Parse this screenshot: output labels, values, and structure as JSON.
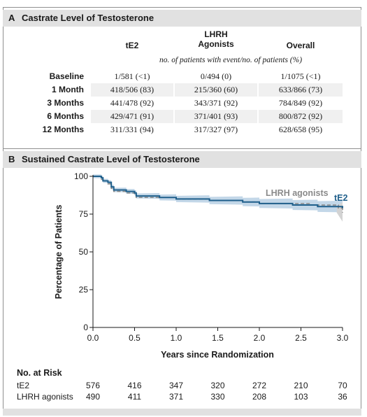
{
  "panel_a": {
    "letter": "A",
    "title": "Castrate Level of Testosterone",
    "columns": [
      "tE2",
      "LHRH Agonists",
      "Overall"
    ],
    "column_lines": [
      [
        "tE2"
      ],
      [
        "LHRH",
        "Agonists"
      ],
      [
        "Overall"
      ]
    ],
    "subheader": "no. of patients with event/no. of patients (%)",
    "rows": [
      {
        "label": "Baseline",
        "values": [
          "1/581 (<1)",
          "0/494 (0)",
          "1/1075 (<1)"
        ]
      },
      {
        "label": "1 Month",
        "values": [
          "418/506 (83)",
          "215/360 (60)",
          "633/866 (73)"
        ]
      },
      {
        "label": "3 Months",
        "values": [
          "441/478 (92)",
          "343/371 (92)",
          "784/849 (92)"
        ]
      },
      {
        "label": "6 Months",
        "values": [
          "429/471 (91)",
          "371/401 (93)",
          "800/872 (92)"
        ]
      },
      {
        "label": "12 Months",
        "values": [
          "311/331 (94)",
          "317/327 (97)",
          "628/658 (95)"
        ]
      }
    ]
  },
  "panel_b": {
    "letter": "B",
    "title": "Sustained Castrate Level of Testosterone"
  },
  "chart_data": {
    "type": "line",
    "title": "Sustained Castrate Level of Testosterone",
    "xlabel": "Years since Randomization",
    "ylabel": "Percentage of Patients",
    "xlim": [
      0,
      3.0
    ],
    "ylim": [
      0,
      100
    ],
    "x_ticks": [
      "0.0",
      "0.5",
      "1.0",
      "1.5",
      "2.0",
      "2.5",
      "3.0"
    ],
    "y_ticks": [
      "0",
      "25",
      "50",
      "75",
      "100"
    ],
    "series": [
      {
        "name": "tE2",
        "color": "#1f5f8b",
        "band_color": "#bcd3e6",
        "x": [
          0,
          0.1,
          0.12,
          0.18,
          0.22,
          0.25,
          0.4,
          0.5,
          0.52,
          0.6,
          0.8,
          1.0,
          1.2,
          1.4,
          1.6,
          1.8,
          1.9,
          2.0,
          2.2,
          2.4,
          2.5,
          2.7,
          2.9,
          3.0
        ],
        "y": [
          100,
          99,
          97,
          96,
          93,
          91,
          90,
          89,
          87,
          87,
          86,
          85,
          85,
          84,
          84,
          83,
          83,
          82,
          82,
          81,
          81,
          80,
          80,
          79
        ]
      },
      {
        "name": "LHRH agonists",
        "color": "#8a8a8a",
        "x": [
          0,
          0.1,
          0.12,
          0.18,
          0.22,
          0.25,
          0.4,
          0.5,
          0.52,
          0.6,
          0.8,
          1.0,
          1.2,
          1.4,
          1.6,
          1.8,
          2.0,
          2.2,
          2.4,
          2.6,
          2.8,
          2.95,
          3.0
        ],
        "y": [
          100,
          98,
          97,
          95,
          92,
          90,
          89,
          88,
          86,
          86,
          86,
          85,
          85,
          84,
          84,
          83,
          82,
          82,
          82,
          81,
          81,
          79,
          76
        ]
      }
    ],
    "legend": "labels-at-right"
  },
  "risk_table": {
    "title": "No. at Risk",
    "times": [
      0,
      0.5,
      1.0,
      1.5,
      2.0,
      2.5,
      3.0
    ],
    "rows": [
      {
        "label": "tE2",
        "values": [
          "576",
          "416",
          "347",
          "320",
          "272",
          "210",
          "70"
        ]
      },
      {
        "label": "LHRH agonists",
        "values": [
          "490",
          "411",
          "371",
          "330",
          "208",
          "103",
          "36"
        ]
      }
    ]
  }
}
